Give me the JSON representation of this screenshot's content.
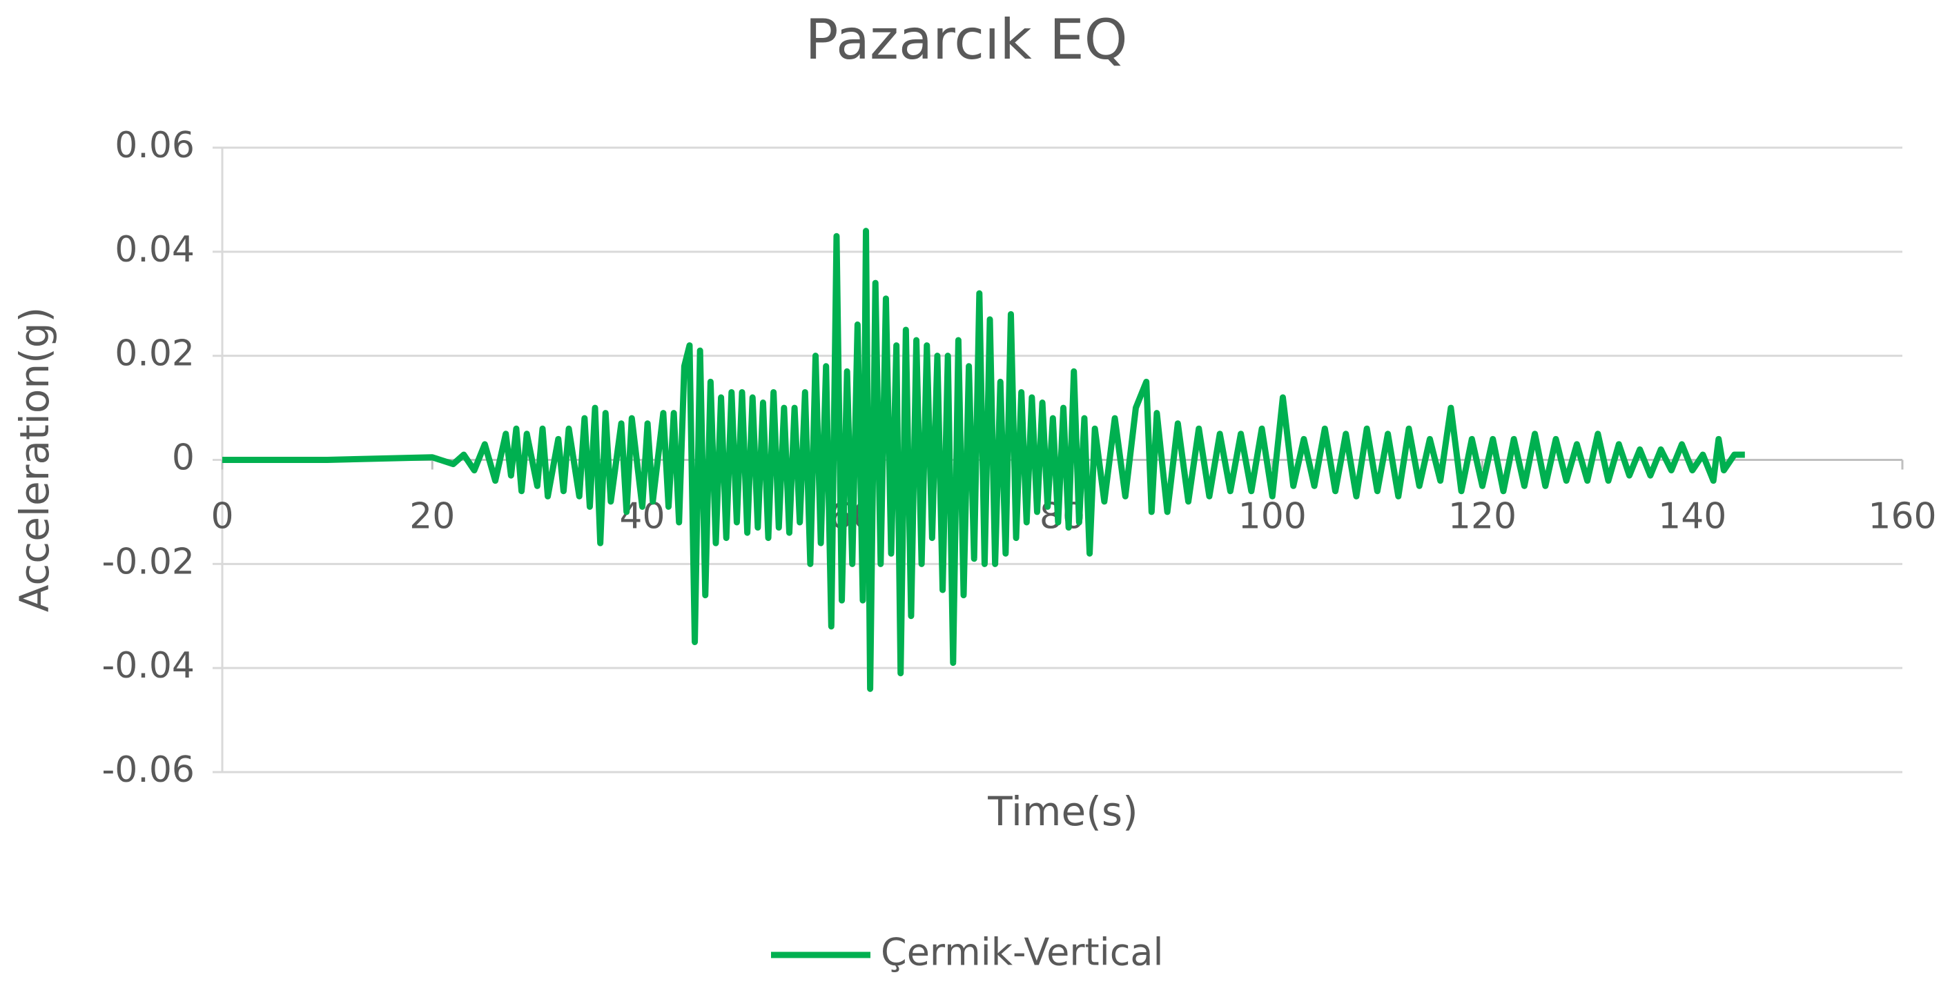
{
  "chart_data": {
    "type": "line",
    "title": "Pazarcık EQ",
    "x_label": "Time(s)",
    "y_label": "Acceleration(g)",
    "x": [
      0,
      10,
      20,
      22,
      23,
      24,
      25,
      26,
      27,
      27.5,
      28,
      28.5,
      29,
      30,
      30.5,
      31,
      32,
      32.5,
      33,
      34,
      34.5,
      35,
      35.5,
      36,
      36.5,
      37,
      38,
      38.5,
      39,
      40,
      40.5,
      41,
      42,
      42.5,
      43,
      43.5,
      44,
      44.5,
      45,
      45.5,
      46,
      46.5,
      47,
      47.5,
      48,
      48.5,
      49,
      49.5,
      50,
      50.5,
      51,
      51.5,
      52,
      52.5,
      53,
      53.5,
      54,
      54.5,
      55,
      55.5,
      56,
      56.5,
      57,
      57.5,
      58,
      58.5,
      59,
      59.5,
      60,
      60.5,
      61,
      61.3,
      61.7,
      62.2,
      62.7,
      63.2,
      63.7,
      64.2,
      64.6,
      65.1,
      65.6,
      66.1,
      66.6,
      67.1,
      67.6,
      68.1,
      68.6,
      69.1,
      69.6,
      70.1,
      70.6,
      71.1,
      71.6,
      72.1,
      72.6,
      73.1,
      73.6,
      74.1,
      74.6,
      75.1,
      75.6,
      76.1,
      76.6,
      77.1,
      77.6,
      78.1,
      78.6,
      79.1,
      79.6,
      80.1,
      80.6,
      81.1,
      81.6,
      82.1,
      82.6,
      83.1,
      84,
      85,
      86,
      87,
      88,
      88.5,
      89,
      90,
      91,
      92,
      93,
      94,
      95,
      96,
      97,
      98,
      99,
      100,
      101,
      102,
      103,
      104,
      105,
      106,
      107,
      108,
      109,
      110,
      111,
      112,
      113,
      114,
      115,
      116,
      117,
      118,
      119,
      120,
      121,
      122,
      123,
      124,
      125,
      126,
      127,
      128,
      129,
      130,
      131,
      132,
      133,
      134,
      135,
      136,
      137,
      138,
      139,
      140,
      141,
      142,
      142.5,
      143,
      144,
      145
    ],
    "series": [
      {
        "name": "Çermik-Vertical",
        "color": "#00b050",
        "values": [
          0,
          0,
          0.0005,
          -0.0008,
          0.001,
          -0.002,
          0.003,
          -0.004,
          0.005,
          -0.003,
          0.006,
          -0.006,
          0.005,
          -0.005,
          0.006,
          -0.007,
          0.004,
          -0.006,
          0.006,
          -0.007,
          0.008,
          -0.009,
          0.01,
          -0.016,
          0.009,
          -0.008,
          0.007,
          -0.01,
          0.008,
          -0.009,
          0.007,
          -0.008,
          0.009,
          -0.009,
          0.009,
          -0.012,
          0.018,
          0.022,
          -0.035,
          0.021,
          -0.026,
          0.015,
          -0.016,
          0.012,
          -0.015,
          0.013,
          -0.012,
          0.013,
          -0.014,
          0.012,
          -0.013,
          0.011,
          -0.015,
          0.013,
          -0.013,
          0.01,
          -0.014,
          0.01,
          -0.012,
          0.013,
          -0.02,
          0.02,
          -0.016,
          0.018,
          -0.032,
          0.043,
          -0.027,
          0.017,
          -0.02,
          0.026,
          -0.027,
          0.044,
          -0.044,
          0.034,
          -0.02,
          0.031,
          -0.018,
          0.022,
          -0.041,
          0.025,
          -0.03,
          0.023,
          -0.02,
          0.022,
          -0.015,
          0.02,
          -0.025,
          0.02,
          -0.039,
          0.023,
          -0.026,
          0.018,
          -0.019,
          0.032,
          -0.02,
          0.027,
          -0.02,
          0.015,
          -0.018,
          0.028,
          -0.015,
          0.013,
          -0.012,
          0.012,
          -0.01,
          0.011,
          -0.009,
          0.008,
          -0.012,
          0.01,
          -0.013,
          0.017,
          -0.012,
          0.008,
          -0.018,
          0.006,
          -0.008,
          0.008,
          -0.007,
          0.01,
          0.015,
          -0.01,
          0.009,
          -0.01,
          0.007,
          -0.008,
          0.006,
          -0.007,
          0.005,
          -0.006,
          0.005,
          -0.006,
          0.006,
          -0.007,
          0.012,
          -0.005,
          0.004,
          -0.005,
          0.006,
          -0.006,
          0.005,
          -0.007,
          0.006,
          -0.006,
          0.005,
          -0.007,
          0.006,
          -0.005,
          0.004,
          -0.004,
          0.01,
          -0.006,
          0.004,
          -0.005,
          0.004,
          -0.006,
          0.004,
          -0.005,
          0.005,
          -0.005,
          0.004,
          -0.004,
          0.003,
          -0.004,
          0.005,
          -0.004,
          0.003,
          -0.003,
          0.002,
          -0.003,
          0.002,
          -0.002,
          0.003,
          -0.002,
          0.001,
          -0.004,
          0.004,
          -0.002,
          0.001,
          0.001
        ]
      }
    ],
    "xlim": [
      0,
      160
    ],
    "xticks": [
      0,
      20,
      40,
      60,
      80,
      100,
      120,
      140,
      160
    ],
    "ylim": [
      -0.06,
      0.06
    ],
    "yticks": [
      -0.06,
      -0.04,
      -0.02,
      0,
      0.02,
      0.04,
      0.06
    ],
    "grid": true,
    "legend": "bottom"
  }
}
